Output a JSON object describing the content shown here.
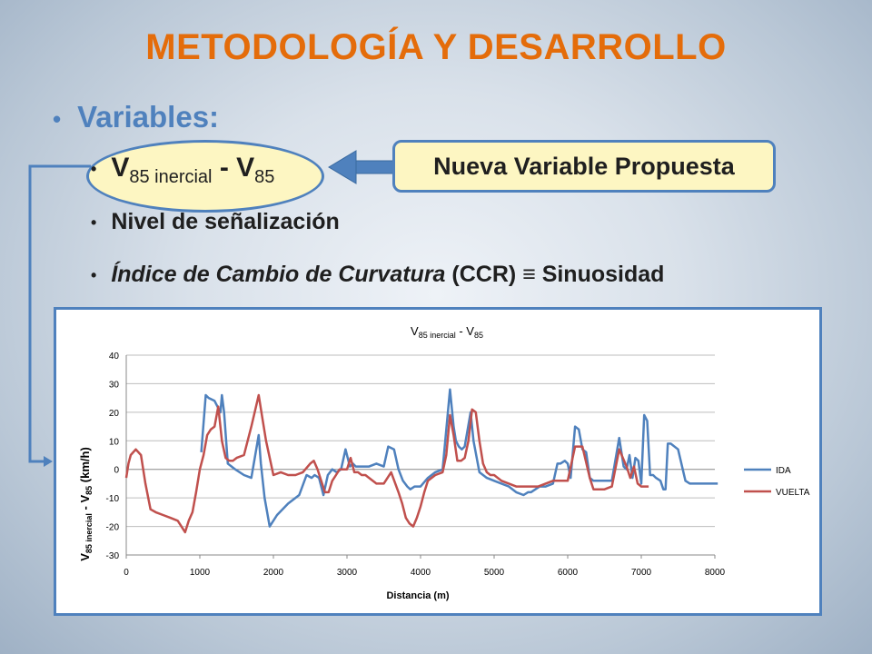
{
  "slide": {
    "title": "METODOLOGÍA Y DESARROLLO",
    "bullet": "Variables:",
    "sub1_v": "V",
    "sub1_sub1": "85 inercial",
    "sub1_mid": " - V",
    "sub1_sub2": "85",
    "callout": "Nueva Variable Propuesta",
    "sub2": "Nivel de señalización",
    "sub3_italic": "Índice de Cambio de Curvatura",
    "sub3_rest": " (CCR) ≡ Sinuosidad"
  },
  "colors": {
    "title": "#e46c0a",
    "accent": "#4f81bd",
    "ida": "#4f81bd",
    "vuelta": "#c0504d",
    "callout_fill": "#fdf6c2"
  },
  "chart_data": {
    "type": "line",
    "title": "V85 inercial - V85",
    "title_parts": {
      "a": "V",
      "b": "85 inercial",
      "c": " - V",
      "d": "85"
    },
    "ylabel_parts": {
      "a": "V",
      "b": "85 inercial",
      "c": " - V",
      "d": "85",
      "e": " (km/h)"
    },
    "xlabel": "Distancia (m)",
    "xlim": [
      0,
      8000
    ],
    "ylim": [
      -30,
      40
    ],
    "xticks": [
      0,
      1000,
      2000,
      3000,
      4000,
      5000,
      6000,
      7000,
      8000
    ],
    "yticks": [
      -30,
      -20,
      -10,
      0,
      10,
      20,
      30,
      40
    ],
    "grid": "horizontal",
    "legend_position": "right",
    "series": [
      {
        "name": "IDA",
        "x": [
          1020,
          1080,
          1120,
          1200,
          1280,
          1300,
          1330,
          1380,
          1480,
          1600,
          1700,
          1800,
          1830,
          1880,
          1950,
          2050,
          2200,
          2350,
          2450,
          2520,
          2560,
          2620,
          2680,
          2740,
          2800,
          2860,
          2920,
          2980,
          3040,
          3080,
          3120,
          3160,
          3220,
          3300,
          3400,
          3500,
          3560,
          3640,
          3700,
          3760,
          3820,
          3860,
          3920,
          4000,
          4100,
          4200,
          4300,
          4400,
          4450,
          4480,
          4520,
          4560,
          4600,
          4680,
          4720,
          4800,
          4900,
          5000,
          5100,
          5200,
          5300,
          5400,
          5460,
          5500,
          5560,
          5620,
          5700,
          5800,
          5860,
          5900,
          5960,
          6000,
          6040,
          6100,
          6150,
          6200,
          6250,
          6300,
          6350,
          6400,
          6450,
          6500,
          6600,
          6700,
          6760,
          6800,
          6840,
          6880,
          6920,
          6960,
          7000,
          7040,
          7080,
          7120,
          7160,
          7200,
          7260,
          7300,
          7330,
          7360,
          7400,
          7500,
          7600,
          7660,
          7720,
          7780,
          7840,
          7880,
          7920,
          7960,
          8000,
          8040
        ],
        "y": [
          6,
          26,
          25,
          24,
          20,
          26,
          20,
          2,
          0,
          -2,
          -3,
          12,
          2,
          -10,
          -20,
          -16,
          -12,
          -9,
          -2,
          -3,
          -2,
          -3,
          -9,
          -2,
          0,
          -1,
          0,
          7,
          1,
          2,
          1,
          1,
          1,
          1,
          2,
          1,
          8,
          7,
          0,
          -4,
          -6,
          -7,
          -6,
          -6,
          -3,
          -1,
          0,
          28,
          15,
          10,
          8,
          7,
          8,
          20,
          10,
          -1,
          -3,
          -4,
          -5,
          -6,
          -8,
          -9,
          -8,
          -8,
          -7,
          -6,
          -6,
          -5,
          2,
          2,
          3,
          2,
          -3,
          15,
          14,
          7,
          6,
          -3,
          -4,
          -4,
          -4,
          -4,
          -4,
          11,
          1,
          0,
          5,
          -3,
          4,
          3,
          -5,
          19,
          17,
          -2,
          -2,
          -3,
          -4,
          -7,
          -7,
          9,
          9,
          7,
          -4,
          -5,
          -5,
          -5,
          -5,
          -5,
          -5,
          -5,
          -5,
          -5
        ],
        "note": "approximate"
      },
      {
        "name": "VUELTA",
        "x": [
          0,
          30,
          60,
          130,
          200,
          260,
          330,
          400,
          500,
          600,
          700,
          800,
          850,
          900,
          950,
          1000,
          1050,
          1100,
          1150,
          1200,
          1250,
          1300,
          1350,
          1400,
          1450,
          1500,
          1600,
          1700,
          1800,
          1850,
          1900,
          2000,
          2100,
          2200,
          2300,
          2400,
          2500,
          2550,
          2600,
          2650,
          2700,
          2750,
          2800,
          2850,
          2900,
          2950,
          3000,
          3050,
          3100,
          3150,
          3200,
          3250,
          3300,
          3400,
          3500,
          3600,
          3700,
          3750,
          3800,
          3850,
          3900,
          3950,
          4000,
          4050,
          4100,
          4200,
          4300,
          4350,
          4400,
          4450,
          4500,
          4550,
          4600,
          4650,
          4700,
          4750,
          4800,
          4850,
          4900,
          4950,
          5000,
          5100,
          5200,
          5300,
          5400,
          5500,
          5600,
          5700,
          5800,
          5900,
          6000,
          6100,
          6200,
          6300,
          6350,
          6400,
          6450,
          6500,
          6600,
          6700,
          6800,
          6850,
          6900,
          6950,
          7000,
          7050,
          7100
        ],
        "y": [
          -3,
          2,
          5,
          7,
          5,
          -5,
          -14,
          -15,
          -16,
          -17,
          -18,
          -22,
          -18,
          -15,
          -8,
          0,
          5,
          12,
          14,
          15,
          22,
          10,
          4,
          3,
          3,
          4,
          5,
          15,
          26,
          18,
          10,
          -2,
          -1,
          -2,
          -2,
          -1,
          2,
          3,
          0,
          -4,
          -8,
          -8,
          -4,
          -2,
          0,
          0,
          0,
          4,
          -1,
          -1,
          -2,
          -2,
          -3,
          -5,
          -5,
          -1,
          -8,
          -12,
          -17,
          -19,
          -20,
          -17,
          -13,
          -8,
          -4,
          -2,
          -1,
          5,
          19,
          12,
          3,
          3,
          4,
          10,
          21,
          20,
          10,
          2,
          -1,
          -2,
          -2,
          -4,
          -5,
          -6,
          -6,
          -6,
          -6,
          -5,
          -4,
          -4,
          -4,
          8,
          8,
          -3,
          -7,
          -7,
          -7,
          -7,
          -6,
          7,
          1,
          -3,
          1,
          -5,
          -6,
          -6,
          -6
        ],
        "note": "approximate"
      }
    ]
  }
}
